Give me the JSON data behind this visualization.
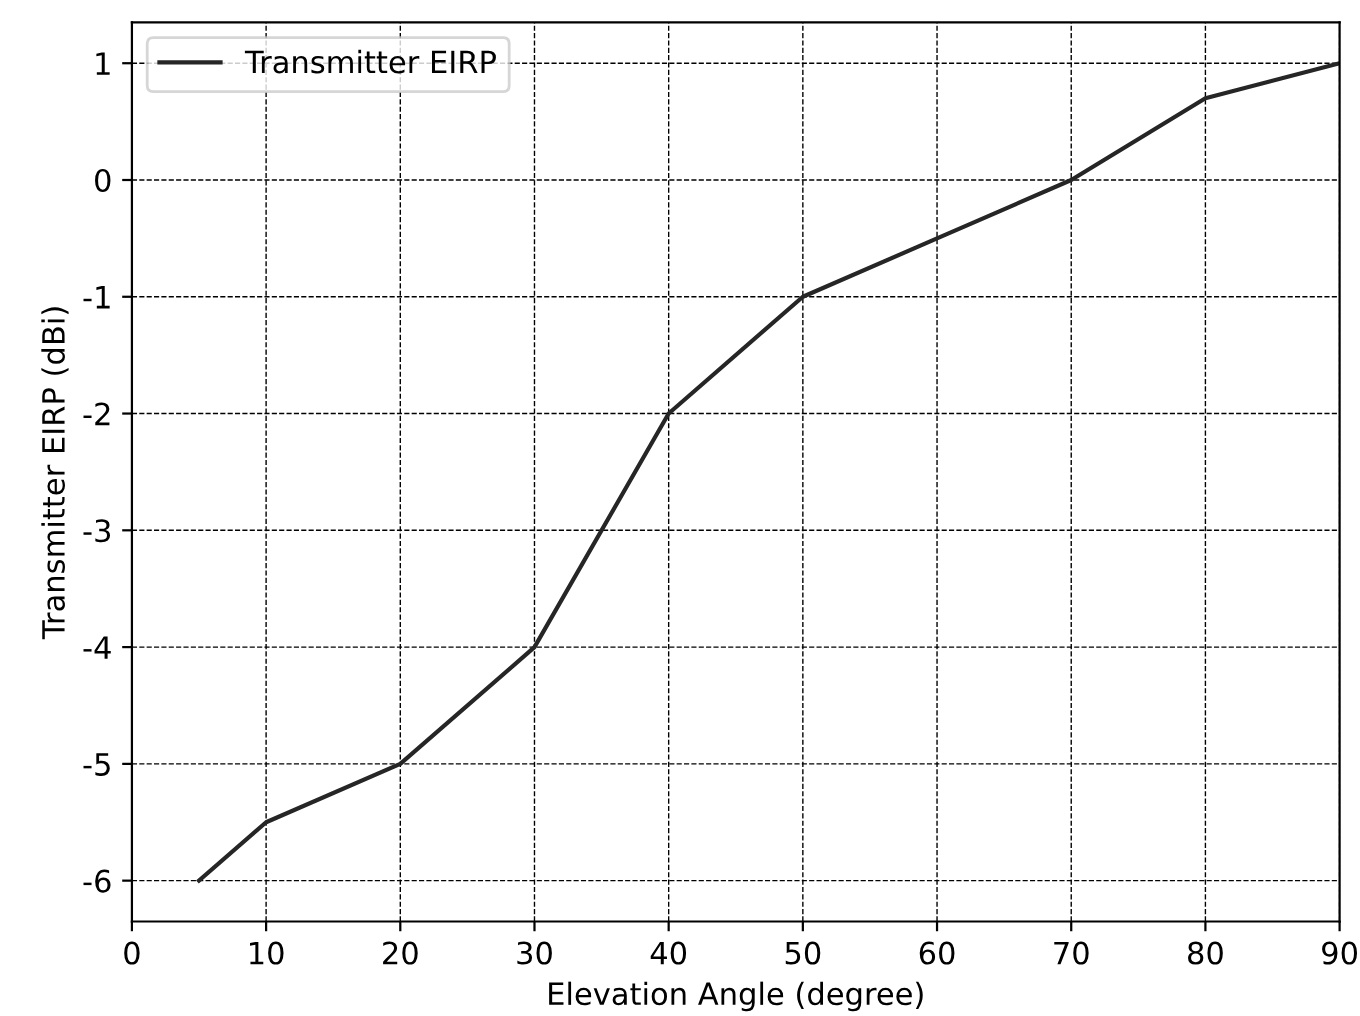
{
  "chart_data": {
    "type": "line",
    "xlabel": "Elevation Angle (degree)",
    "ylabel": "Transmitter EIRP (dBi)",
    "x": [
      5,
      10,
      20,
      30,
      40,
      50,
      60,
      70,
      80,
      90
    ],
    "series": [
      {
        "name": "Transmitter EIRP",
        "color": "#262626",
        "values": [
          -6,
          -5.5,
          -5,
          -4,
          -2,
          -1,
          -0.5,
          0,
          0.7,
          1
        ]
      }
    ],
    "xlim": [
      0,
      90
    ],
    "xticks": [
      0,
      10,
      20,
      30,
      40,
      50,
      60,
      70,
      80,
      90
    ],
    "ylim": [
      -6.35,
      1.35
    ],
    "yticks": [
      -6,
      -5,
      -4,
      -3,
      -2,
      -1,
      0,
      1
    ],
    "grid": true,
    "legend": "top left",
    "line_style": "solid",
    "marker": "none"
  }
}
